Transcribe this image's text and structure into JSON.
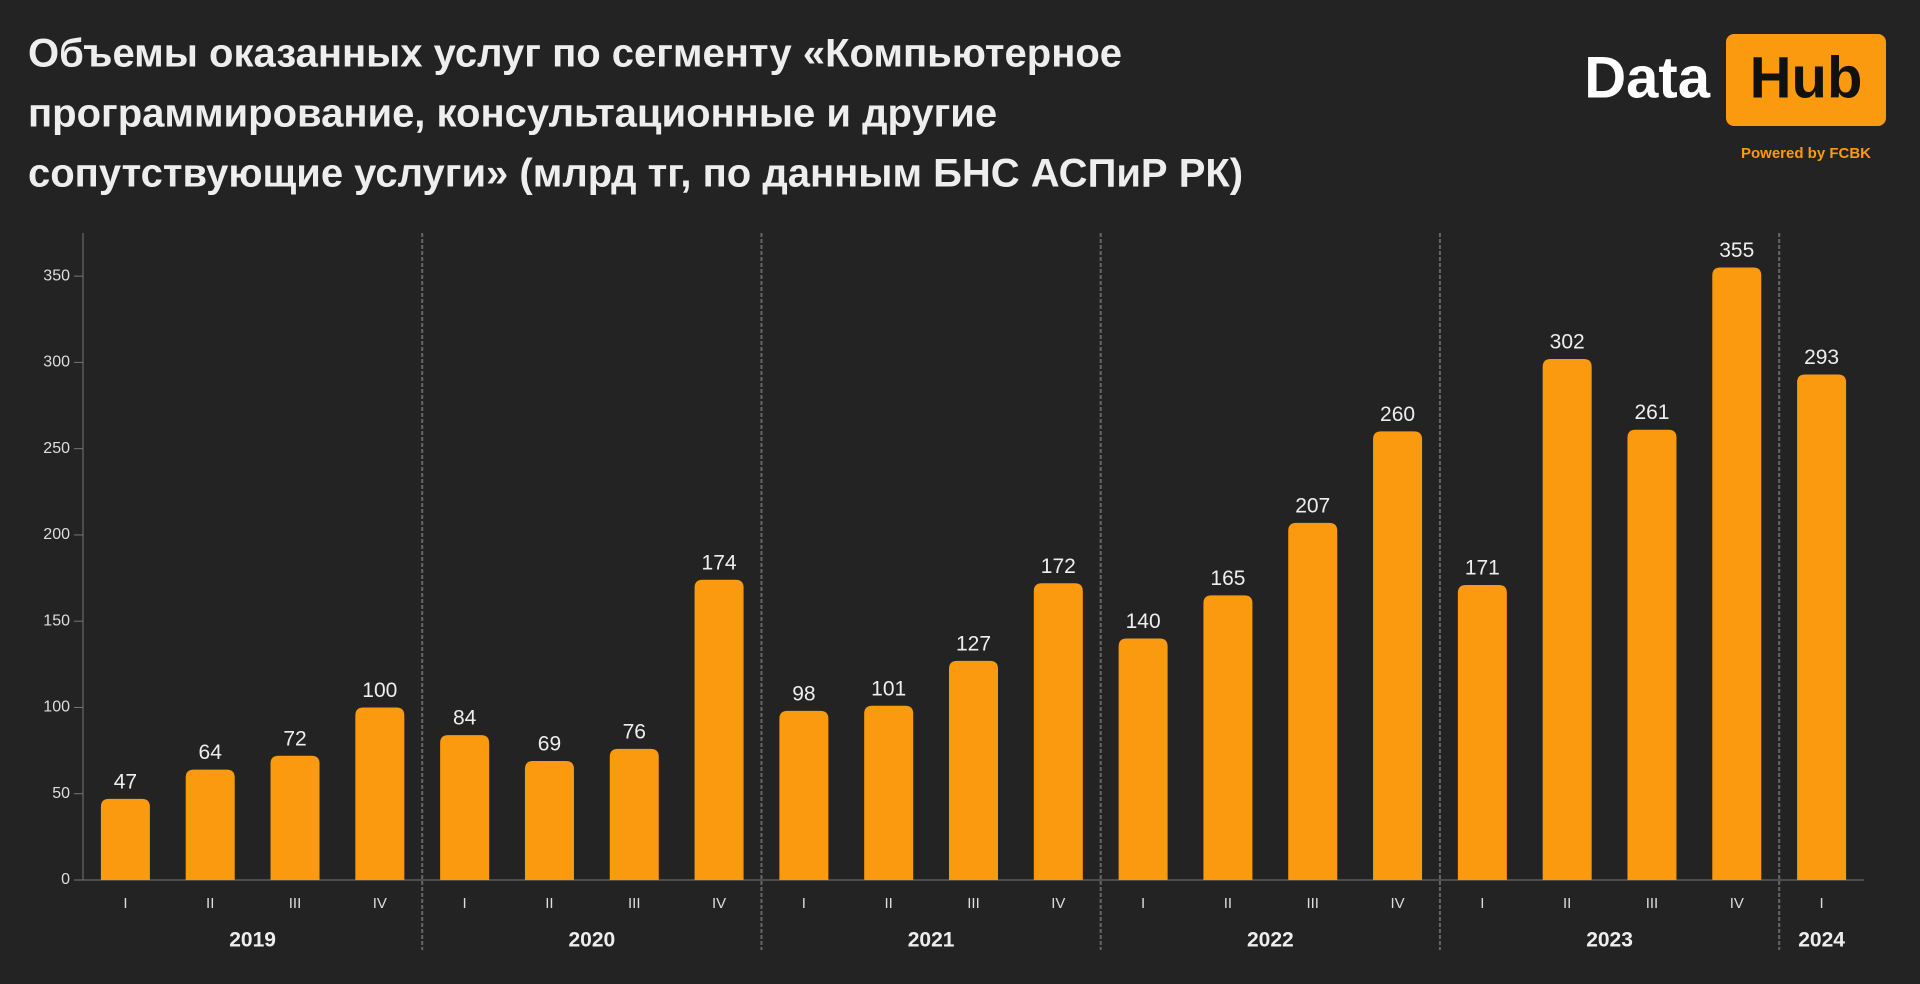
{
  "chart_data": {
    "type": "bar",
    "title": [
      "Объемы оказанных услуг по сегменту «Компьютерное",
      "программирование, консультационные и другие",
      "сопутствующие услуги» (млрд тг, по данным БНС АСПиР РК)"
    ],
    "groups": [
      {
        "name": "2019",
        "categories": [
          "I",
          "II",
          "III",
          "IV"
        ],
        "values": [
          47,
          64,
          72,
          100
        ]
      },
      {
        "name": "2020",
        "categories": [
          "I",
          "II",
          "III",
          "IV"
        ],
        "values": [
          84,
          69,
          76,
          174
        ]
      },
      {
        "name": "2021",
        "categories": [
          "I",
          "II",
          "III",
          "IV"
        ],
        "values": [
          98,
          101,
          127,
          172
        ]
      },
      {
        "name": "2022",
        "categories": [
          "I",
          "II",
          "III",
          "IV"
        ],
        "values": [
          140,
          165,
          207,
          260
        ]
      },
      {
        "name": "2023",
        "categories": [
          "I",
          "II",
          "III",
          "IV"
        ],
        "values": [
          171,
          302,
          261,
          355
        ]
      },
      {
        "name": "2024",
        "categories": [
          "I"
        ],
        "values": [
          293
        ]
      }
    ],
    "color": "#fb9a0e",
    "ylim": [
      0,
      375
    ],
    "yticks": [
      0,
      50,
      100,
      150,
      200,
      250,
      300,
      350
    ]
  },
  "logo": {
    "word": "Data",
    "badge": "Hub",
    "tagline": "Powered by FCBK"
  }
}
